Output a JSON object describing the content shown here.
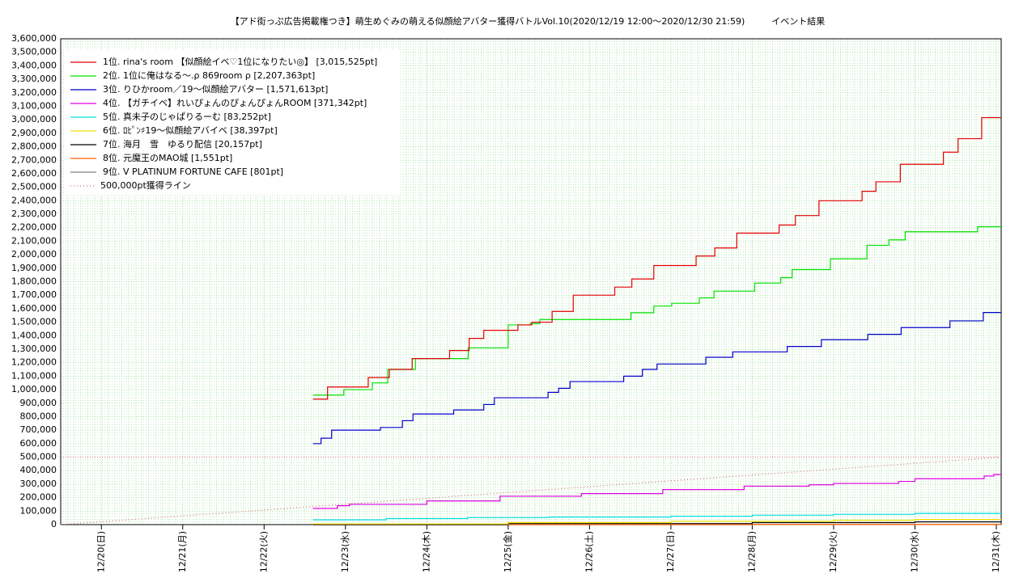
{
  "chart_data": {
    "type": "line",
    "drawstyle": "steps-post",
    "title": "【アド街っぷ広告掲載権つき】萌生めぐみの萌える似顔絵アバター獲得バトルVol.10(2020/12/19 12:00〜2020/12/30 21:59)　　　イベント結果",
    "xlim": [
      19.5,
      31.06
    ],
    "ylim": [
      0,
      3600000
    ],
    "grid": true,
    "legend": "upper left",
    "xticks": [
      {
        "value": 20,
        "label": "12/20(日)"
      },
      {
        "value": 21,
        "label": "12/21(月)"
      },
      {
        "value": 22,
        "label": "12/22(火)"
      },
      {
        "value": 23,
        "label": "12/23(水)"
      },
      {
        "value": 24,
        "label": "12/24(木)"
      },
      {
        "value": 25,
        "label": "12/25(金)"
      },
      {
        "value": 26,
        "label": "12/26(土)"
      },
      {
        "value": 27,
        "label": "12/27(日)"
      },
      {
        "value": 28,
        "label": "12/28(月)"
      },
      {
        "value": 29,
        "label": "12/29(火)"
      },
      {
        "value": 30,
        "label": "12/30(水)"
      },
      {
        "value": 31,
        "label": "12/31(木)"
      }
    ],
    "yticks": [
      0,
      {
        "value": 100000,
        "label": "100,000"
      },
      {
        "value": 200000,
        "label": "200,000"
      },
      {
        "value": 300000,
        "label": "300,000"
      },
      {
        "value": 400000,
        "label": "400,000"
      },
      {
        "value": 500000,
        "label": "500,000"
      },
      {
        "value": 600000,
        "label": "600,000"
      },
      {
        "value": 700000,
        "label": "700,000"
      },
      {
        "value": 800000,
        "label": "800,000"
      },
      {
        "value": 900000,
        "label": "900,000"
      },
      {
        "value": 1000000,
        "label": "1,000,000"
      },
      {
        "value": 1100000,
        "label": "1,100,000"
      },
      {
        "value": 1200000,
        "label": "1,200,000"
      },
      {
        "value": 1300000,
        "label": "1,300,000"
      },
      {
        "value": 1400000,
        "label": "1,400,000"
      },
      {
        "value": 1500000,
        "label": "1,500,000"
      },
      {
        "value": 1600000,
        "label": "1,600,000"
      },
      {
        "value": 1700000,
        "label": "1,700,000"
      },
      {
        "value": 1800000,
        "label": "1,800,000"
      },
      {
        "value": 1900000,
        "label": "1,900,000"
      },
      {
        "value": 2000000,
        "label": "2,000,000"
      },
      {
        "value": 2100000,
        "label": "2,100,000"
      },
      {
        "value": 2200000,
        "label": "2,200,000"
      },
      {
        "value": 2300000,
        "label": "2,300,000"
      },
      {
        "value": 2400000,
        "label": "2,400,000"
      },
      {
        "value": 2500000,
        "label": "2,500,000"
      },
      {
        "value": 2600000,
        "label": "2,600,000"
      },
      {
        "value": 2700000,
        "label": "2,700,000"
      },
      {
        "value": 2800000,
        "label": "2,800,000"
      },
      {
        "value": 2900000,
        "label": "2,900,000"
      },
      {
        "value": 3000000,
        "label": "3,000,000"
      },
      {
        "value": 3100000,
        "label": "3,100,000"
      },
      {
        "value": 3200000,
        "label": "3,200,000"
      },
      {
        "value": 3300000,
        "label": "3,300,000"
      },
      {
        "value": 3400000,
        "label": "3,400,000"
      },
      {
        "value": 3500000,
        "label": "3,500,000"
      },
      {
        "value": 3600000,
        "label": "3,600,000"
      }
    ],
    "hlines": [
      500000
    ],
    "series": [
      {
        "name": "1位. rina's room 【似顔絵イベ♡1位になりたい◎】 [3,015,525pt]",
        "color": "#e00000",
        "x": [
          22.6,
          22.78,
          23.28,
          23.54,
          23.82,
          24.28,
          24.52,
          24.7,
          25.12,
          25.29,
          25.54,
          25.8,
          26.31,
          26.52,
          26.79,
          27.31,
          27.54,
          27.81,
          28.33,
          28.53,
          28.82,
          29.35,
          29.52,
          29.82,
          30.35,
          30.53,
          30.82,
          31.06
        ],
        "values": [
          930000,
          1020000,
          1090000,
          1150000,
          1230000,
          1290000,
          1380000,
          1440000,
          1480000,
          1500000,
          1580000,
          1700000,
          1760000,
          1820000,
          1920000,
          1990000,
          2050000,
          2160000,
          2220000,
          2290000,
          2400000,
          2470000,
          2540000,
          2670000,
          2760000,
          2860000,
          3015525,
          3015525
        ]
      },
      {
        "name": "2位. 1位に俺はなる〜.ρ 869room ρ [2,207,363pt]",
        "color": "#00e000",
        "x": [
          22.6,
          22.98,
          23.33,
          23.52,
          23.86,
          24.51,
          25.0,
          25.27,
          25.39,
          26.51,
          26.79,
          27.01,
          27.35,
          27.53,
          28.03,
          28.35,
          28.49,
          28.96,
          29.41,
          29.68,
          29.88,
          30.77,
          31.06
        ],
        "values": [
          960000,
          1000000,
          1050000,
          1150000,
          1230000,
          1310000,
          1480000,
          1490000,
          1520000,
          1570000,
          1620000,
          1640000,
          1680000,
          1730000,
          1790000,
          1830000,
          1890000,
          1970000,
          2070000,
          2110000,
          2170000,
          2207363,
          2207363
        ]
      },
      {
        "name": "3位. りひかroom／19〜似顔絵アバター [1,571,613pt]",
        "color": "#0000c8",
        "x": [
          22.6,
          22.7,
          22.83,
          23.43,
          23.7,
          23.83,
          24.33,
          24.7,
          24.83,
          25.49,
          25.62,
          25.76,
          26.42,
          26.65,
          26.83,
          27.43,
          27.76,
          28.43,
          28.85,
          29.42,
          29.83,
          30.43,
          30.84,
          31.06
        ],
        "values": [
          600000,
          640000,
          700000,
          720000,
          770000,
          820000,
          850000,
          890000,
          940000,
          980000,
          1010000,
          1060000,
          1100000,
          1150000,
          1190000,
          1240000,
          1280000,
          1320000,
          1370000,
          1410000,
          1460000,
          1510000,
          1571613,
          1571613
        ]
      },
      {
        "name": "4位. 【ガチイベ】れいぴょんのぴょんぴょんROOM [371,342pt]",
        "color": "#e000e0",
        "x": [
          22.6,
          22.9,
          23.05,
          24.0,
          24.9,
          25.9,
          26.9,
          27.9,
          28.7,
          29.0,
          29.8,
          30.0,
          30.85,
          30.97,
          31.06
        ],
        "values": [
          120000,
          140000,
          150000,
          175000,
          210000,
          230000,
          260000,
          285000,
          295000,
          305000,
          320000,
          340000,
          360000,
          371342,
          371342
        ]
      },
      {
        "name": "5位. 真未子のじゃぱりるーむ [83,252pt]",
        "color": "#00e0e0",
        "x": [
          22.6,
          23.5,
          24.5,
          25.5,
          27.0,
          28.0,
          29.0,
          30.0,
          31.06
        ],
        "values": [
          35000,
          45000,
          52000,
          56000,
          62000,
          70000,
          76000,
          83252,
          83252
        ]
      },
      {
        "name": "6位. ﾛﾋﾟﾝ♯19〜似顔絵アバイベ [38,397pt]",
        "color": "#f0e000",
        "x": [
          22.6,
          25.0,
          27.0,
          29.0,
          30.0,
          31.06
        ],
        "values": [
          5000,
          15000,
          25000,
          32000,
          38397,
          38397
        ]
      },
      {
        "name": "7位. 海月　雪　ゆるり配信 [20,157pt]",
        "color": "#000000",
        "x": [
          22.6,
          25.0,
          28.0,
          30.0,
          31.06
        ],
        "values": [
          0,
          8000,
          15000,
          20157,
          20157
        ]
      },
      {
        "name": "8位. 元魔王のMAO城 [1,551pt]",
        "color": "#ff6000",
        "x": [
          22.6,
          28.0,
          31.06
        ],
        "values": [
          0,
          1551,
          1551
        ]
      },
      {
        "name": "9位. V PLATINUM FORTUNE CAFE [801pt]",
        "color": "#808080",
        "x": [
          22.6,
          28.0,
          31.06
        ],
        "values": [
          0,
          801,
          801
        ]
      },
      {
        "name": "500,000pt獲得ライン",
        "color": "#d07070",
        "linestyle": "dotted",
        "x": [
          19.5,
          31.06
        ],
        "values": [
          0,
          500000
        ]
      }
    ]
  }
}
